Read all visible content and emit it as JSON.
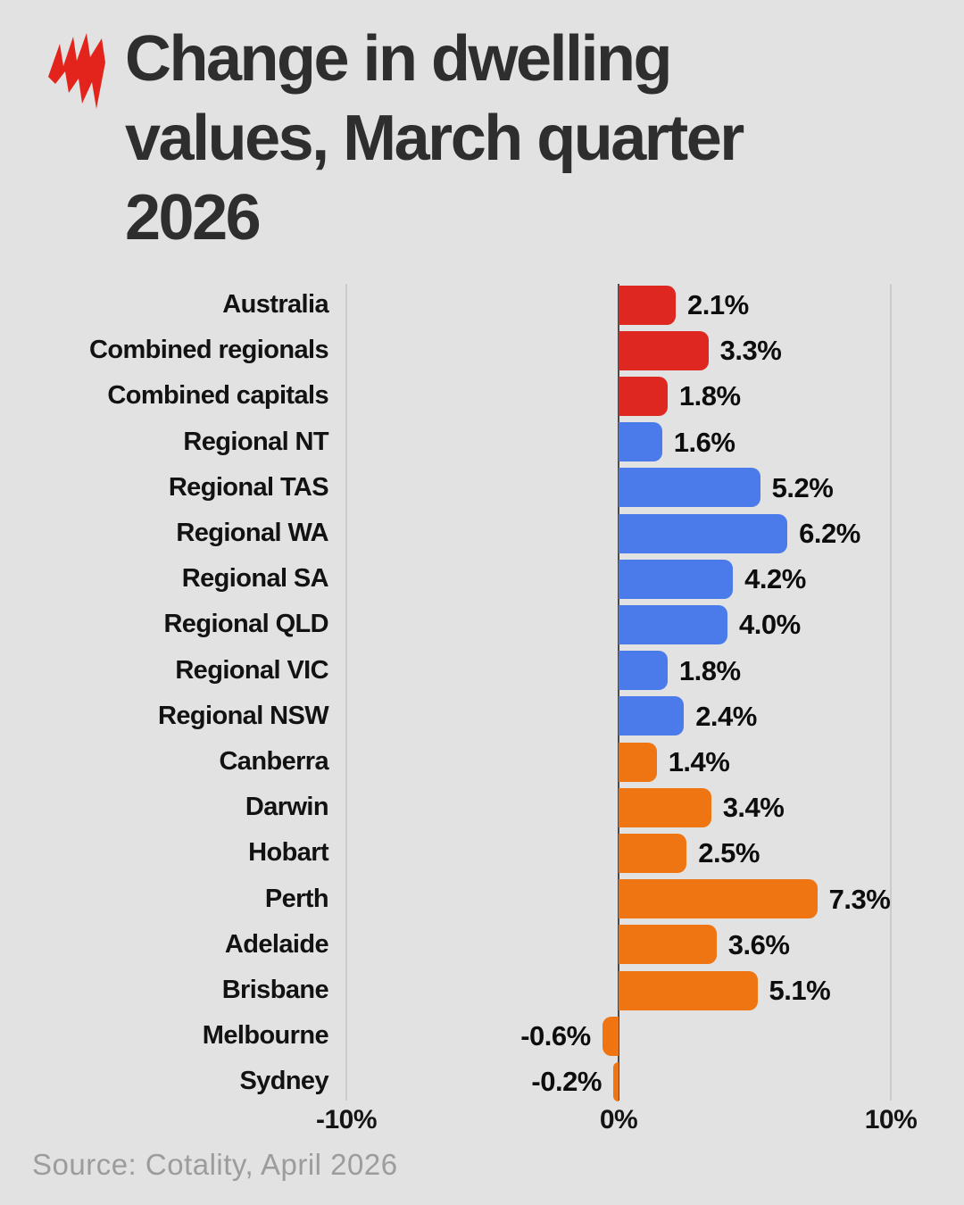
{
  "header": {
    "title_lines": [
      "Change in dwelling",
      "values, March quarter",
      "2026"
    ],
    "title_full": "Change in dwelling values, March quarter 2026"
  },
  "logo": {
    "name": "SBS",
    "color": "#e3241d"
  },
  "chart_data": {
    "type": "bar",
    "orientation": "horizontal",
    "title": "Change in dwelling values, March quarter 2026",
    "xlabel": "",
    "ylabel": "",
    "xlim": [
      -10,
      10
    ],
    "grid": "vertical",
    "legend": "none",
    "unit": "%",
    "palette": {
      "national": "#df2721",
      "regional": "#4b7bea",
      "capital": "#ee7511"
    },
    "axis": {
      "zero_line_color": "#4a4a4a",
      "grid_color": "#cbcbcb",
      "ticks": [
        {
          "value": -10,
          "label": "-10%"
        },
        {
          "value": 0,
          "label": "0%"
        },
        {
          "value": 10,
          "label": "10%"
        }
      ]
    },
    "items": [
      {
        "label": "Australia",
        "value": 2.1,
        "display": "2.1%",
        "group": "national"
      },
      {
        "label": "Combined regionals",
        "value": 3.3,
        "display": "3.3%",
        "group": "national"
      },
      {
        "label": "Combined capitals",
        "value": 1.8,
        "display": "1.8%",
        "group": "national"
      },
      {
        "label": "Regional NT",
        "value": 1.6,
        "display": "1.6%",
        "group": "regional"
      },
      {
        "label": "Regional TAS",
        "value": 5.2,
        "display": "5.2%",
        "group": "regional"
      },
      {
        "label": "Regional WA",
        "value": 6.2,
        "display": "6.2%",
        "group": "regional"
      },
      {
        "label": "Regional SA",
        "value": 4.2,
        "display": "4.2%",
        "group": "regional"
      },
      {
        "label": "Regional QLD",
        "value": 4.0,
        "display": "4.0%",
        "group": "regional"
      },
      {
        "label": "Regional VIC",
        "value": 1.8,
        "display": "1.8%",
        "group": "regional"
      },
      {
        "label": "Regional NSW",
        "value": 2.4,
        "display": "2.4%",
        "group": "regional"
      },
      {
        "label": "Canberra",
        "value": 1.4,
        "display": "1.4%",
        "group": "capital"
      },
      {
        "label": "Darwin",
        "value": 3.4,
        "display": "3.4%",
        "group": "capital"
      },
      {
        "label": "Hobart",
        "value": 2.5,
        "display": "2.5%",
        "group": "capital"
      },
      {
        "label": "Perth",
        "value": 7.3,
        "display": "7.3%",
        "group": "capital"
      },
      {
        "label": "Adelaide",
        "value": 3.6,
        "display": "3.6%",
        "group": "capital"
      },
      {
        "label": "Brisbane",
        "value": 5.1,
        "display": "5.1%",
        "group": "capital"
      },
      {
        "label": "Melbourne",
        "value": -0.6,
        "display": "-0.6%",
        "group": "capital"
      },
      {
        "label": "Sydney",
        "value": -0.2,
        "display": "-0.2%",
        "group": "capital"
      }
    ]
  },
  "footer": {
    "source": "Source: Cotality, April 2026"
  }
}
